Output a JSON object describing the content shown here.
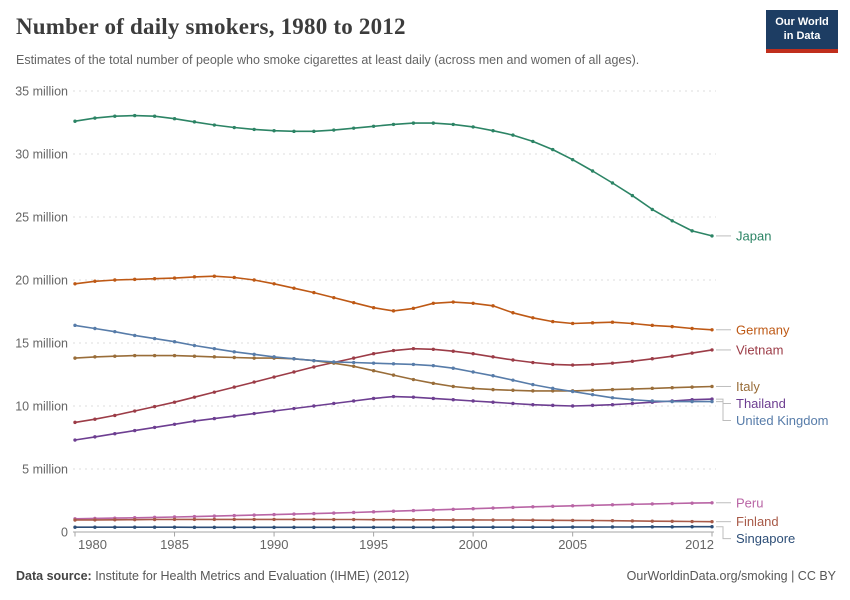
{
  "header": {
    "title": "Number of daily smokers, 1980 to 2012",
    "subtitle": "Estimates of the total number of people who smoke cigarettes at least daily (across men and women of all ages).",
    "logo": {
      "line1": "Our World",
      "line2": "in Data"
    }
  },
  "footer": {
    "datasource_label": "Data source:",
    "datasource_text": " Institute for Health Metrics and Evaluation (IHME) (2012)",
    "link_text": "OurWorldinData.org/smoking | CC BY"
  },
  "colors": {
    "grid": "#dedede",
    "axis": "#a5a5a5",
    "tick_label": "#666666",
    "leader": "#bdbdbd",
    "logo_bg": "#1d3d63",
    "logo_bar": "#c02e1c"
  },
  "chart_data": {
    "type": "line",
    "title": "Number of daily smokers, 1980 to 2012",
    "xlabel": "",
    "ylabel": "",
    "xlim": [
      1980,
      2012
    ],
    "ylim": [
      0,
      35000000
    ],
    "grid": "horizontal-dashed",
    "legend_position": "right-edge-labels",
    "y_ticks": [
      0,
      5,
      10,
      15,
      20,
      25,
      30,
      35
    ],
    "y_tick_suffix": " million",
    "x_ticks": [
      1980,
      1985,
      1990,
      1995,
      2000,
      2005,
      2012
    ],
    "x": [
      1980,
      1981,
      1982,
      1983,
      1984,
      1985,
      1986,
      1987,
      1988,
      1989,
      1990,
      1991,
      1992,
      1993,
      1994,
      1995,
      1996,
      1997,
      1998,
      1999,
      2000,
      2001,
      2002,
      2003,
      2004,
      2005,
      2006,
      2007,
      2008,
      2009,
      2010,
      2011,
      2012
    ],
    "units": "millions of people",
    "series": [
      {
        "name": "Japan",
        "color": "#2c8465",
        "values": [
          32.6,
          32.85,
          33.0,
          33.05,
          33.0,
          32.8,
          32.55,
          32.3,
          32.1,
          31.95,
          31.85,
          31.8,
          31.8,
          31.9,
          32.05,
          32.2,
          32.35,
          32.45,
          32.45,
          32.35,
          32.15,
          31.85,
          31.5,
          31.0,
          30.35,
          29.55,
          28.65,
          27.7,
          26.7,
          25.6,
          24.7,
          23.9,
          23.5
        ]
      },
      {
        "name": "Germany",
        "color": "#be5915",
        "values": [
          19.7,
          19.9,
          20.0,
          20.05,
          20.1,
          20.15,
          20.25,
          20.3,
          20.2,
          20.0,
          19.7,
          19.35,
          19.0,
          18.6,
          18.2,
          17.8,
          17.55,
          17.75,
          18.15,
          18.25,
          18.15,
          17.95,
          17.4,
          17.0,
          16.7,
          16.55,
          16.6,
          16.65,
          16.55,
          16.4,
          16.3,
          16.15,
          16.05
        ]
      },
      {
        "name": "Vietnam",
        "color": "#9c3c47",
        "values": [
          8.7,
          8.95,
          9.25,
          9.6,
          9.95,
          10.3,
          10.7,
          11.1,
          11.5,
          11.9,
          12.3,
          12.7,
          13.1,
          13.45,
          13.8,
          14.15,
          14.4,
          14.55,
          14.5,
          14.35,
          14.15,
          13.9,
          13.65,
          13.45,
          13.3,
          13.25,
          13.3,
          13.4,
          13.55,
          13.75,
          13.95,
          14.2,
          14.45
        ]
      },
      {
        "name": "Italy",
        "color": "#996d39",
        "values": [
          13.8,
          13.9,
          13.95,
          14.0,
          14.0,
          14.0,
          13.95,
          13.9,
          13.85,
          13.8,
          13.8,
          13.75,
          13.6,
          13.4,
          13.15,
          12.8,
          12.45,
          12.1,
          11.8,
          11.55,
          11.4,
          11.3,
          11.25,
          11.2,
          11.2,
          11.2,
          11.25,
          11.3,
          11.35,
          11.4,
          11.45,
          11.5,
          11.55
        ]
      },
      {
        "name": "Thailand",
        "color": "#6d3e91",
        "values": [
          7.3,
          7.55,
          7.8,
          8.05,
          8.3,
          8.55,
          8.8,
          9.0,
          9.2,
          9.4,
          9.6,
          9.8,
          10.0,
          10.2,
          10.4,
          10.6,
          10.75,
          10.7,
          10.6,
          10.5,
          10.4,
          10.3,
          10.2,
          10.1,
          10.05,
          10.0,
          10.05,
          10.1,
          10.2,
          10.3,
          10.4,
          10.5,
          10.55
        ]
      },
      {
        "name": "United Kingdom",
        "color": "#577ca9",
        "values": [
          16.4,
          16.15,
          15.9,
          15.6,
          15.35,
          15.1,
          14.8,
          14.55,
          14.3,
          14.1,
          13.9,
          13.75,
          13.6,
          13.5,
          13.45,
          13.4,
          13.35,
          13.3,
          13.2,
          13.0,
          12.7,
          12.4,
          12.05,
          11.7,
          11.4,
          11.15,
          10.9,
          10.65,
          10.5,
          10.4,
          10.35,
          10.35,
          10.35
        ]
      },
      {
        "name": "Peru",
        "color": "#b965a5",
        "values": [
          1.05,
          1.08,
          1.1,
          1.13,
          1.16,
          1.19,
          1.22,
          1.26,
          1.3,
          1.34,
          1.38,
          1.42,
          1.46,
          1.5,
          1.55,
          1.6,
          1.65,
          1.7,
          1.75,
          1.8,
          1.85,
          1.9,
          1.95,
          2.0,
          2.04,
          2.08,
          2.12,
          2.16,
          2.2,
          2.23,
          2.26,
          2.29,
          2.32
        ]
      },
      {
        "name": "Finland",
        "color": "#a85a48",
        "values": [
          0.95,
          0.96,
          0.97,
          0.98,
          0.99,
          1.0,
          1.0,
          1.0,
          1.0,
          1.0,
          1.0,
          1.0,
          1.0,
          0.99,
          0.99,
          0.98,
          0.98,
          0.97,
          0.97,
          0.96,
          0.96,
          0.95,
          0.95,
          0.94,
          0.93,
          0.92,
          0.91,
          0.9,
          0.88,
          0.86,
          0.85,
          0.83,
          0.82
        ]
      },
      {
        "name": "Singapore",
        "color": "#2d4e77",
        "values": [
          0.38,
          0.38,
          0.38,
          0.38,
          0.38,
          0.38,
          0.37,
          0.37,
          0.37,
          0.37,
          0.37,
          0.37,
          0.37,
          0.37,
          0.37,
          0.37,
          0.37,
          0.37,
          0.37,
          0.38,
          0.38,
          0.38,
          0.38,
          0.38,
          0.38,
          0.39,
          0.39,
          0.4,
          0.4,
          0.41,
          0.41,
          0.42,
          0.42
        ]
      }
    ]
  }
}
